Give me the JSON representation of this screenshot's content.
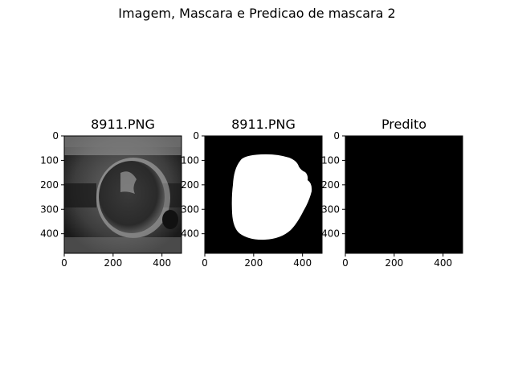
{
  "figure": {
    "suptitle": "Imagem, Mascara e Predicao de mascara 2"
  },
  "colors": {
    "background": "#ffffff",
    "axis": "#000000",
    "mask": "#ffffff",
    "empty": "#000000"
  },
  "chart_data": [
    {
      "type": "image",
      "title": "8911.PNG",
      "content": "grayscale ultrasound scan",
      "xlim": [
        0,
        480
      ],
      "ylim": [
        480,
        0
      ],
      "xticks": [
        0,
        200,
        400
      ],
      "yticks": [
        0,
        100,
        200,
        300,
        400
      ],
      "grid": false
    },
    {
      "type": "image",
      "title": "8911.PNG",
      "content": "binary mask (white region on black)",
      "xlim": [
        0,
        480
      ],
      "ylim": [
        480,
        0
      ],
      "xticks": [
        0,
        200,
        400
      ],
      "yticks": [
        0,
        100,
        200,
        300,
        400
      ],
      "grid": false
    },
    {
      "type": "image",
      "title": "Predito",
      "content": "all-black predicted mask",
      "xlim": [
        0,
        480
      ],
      "ylim": [
        480,
        0
      ],
      "xticks": [
        0,
        200,
        400
      ],
      "yticks": [
        0,
        100,
        200,
        300,
        400
      ],
      "grid": false
    }
  ]
}
